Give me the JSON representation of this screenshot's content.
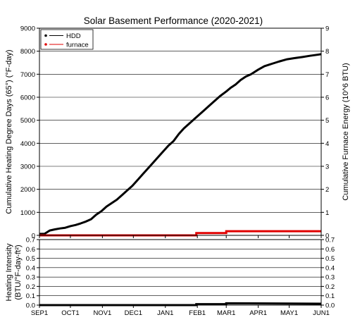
{
  "chart_data": [
    {
      "type": "line",
      "title": "Solar Basement Performance (2020-2021)",
      "ylabel": "Cumulative Heating Degree Days (65°) (°F-day)",
      "ylabel2": "Cumulative Furnace Energy (10^6 BTU)",
      "ylim": [
        0,
        9000
      ],
      "ylim2": [
        0,
        9
      ],
      "yticks": [
        "0",
        "1000",
        "2000",
        "3000",
        "4000",
        "5000",
        "6000",
        "7000",
        "8000",
        "9000"
      ],
      "yticks2": [
        "0",
        "1",
        "2",
        "3",
        "4",
        "5",
        "6",
        "7",
        "8",
        "9"
      ],
      "grid": true,
      "legend_position": "top-left",
      "legend": [
        {
          "name": "HDD",
          "color": "#000000"
        },
        {
          "name": "furnace",
          "color": "#e00000"
        }
      ],
      "x_days": [
        0,
        5,
        10,
        15,
        20,
        25,
        30,
        35,
        40,
        45,
        50,
        55,
        60,
        65,
        70,
        75,
        80,
        85,
        90,
        95,
        100,
        105,
        110,
        115,
        120,
        125,
        130,
        135,
        140,
        145,
        150,
        155,
        160,
        165,
        170,
        175,
        181,
        185,
        190,
        195,
        200,
        205,
        212,
        218,
        225,
        232,
        240,
        247,
        255,
        262,
        270,
        273
      ],
      "series": [
        {
          "name": "HDD",
          "color": "#000000",
          "axis": "left",
          "values": [
            60,
            70,
            210,
            260,
            300,
            330,
            400,
            450,
            520,
            600,
            700,
            900,
            1050,
            1250,
            1400,
            1550,
            1750,
            1950,
            2150,
            2400,
            2650,
            2900,
            3150,
            3400,
            3650,
            3900,
            4100,
            4400,
            4650,
            4850,
            5050,
            5250,
            5450,
            5650,
            5850,
            6050,
            6250,
            6400,
            6550,
            6750,
            6900,
            7000,
            7200,
            7350,
            7450,
            7550,
            7650,
            7700,
            7750,
            7800,
            7850,
            7870
          ]
        },
        {
          "name": "furnace",
          "color": "#e00000",
          "axis": "right",
          "step": true,
          "x": [
            0,
            152,
            152,
            181,
            181,
            273
          ],
          "values": [
            0,
            0,
            0.1,
            0.1,
            0.18,
            0.18
          ]
        }
      ]
    },
    {
      "type": "line",
      "ylabel": "Heating Intensity (BTU/°F-day-ft²)",
      "ylim": [
        0,
        0.7
      ],
      "yticks": [
        "0.0",
        "0.1",
        "0.2",
        "0.3",
        "0.4",
        "0.5",
        "0.6",
        "0.7"
      ],
      "grid": true,
      "categories": [
        "SEP1",
        "OCT1",
        "NOV1",
        "DEC1",
        "JAN1",
        "FEB1",
        "MAR1",
        "APR1",
        "MAY1",
        "JUN1"
      ],
      "category_days": [
        0,
        30,
        61,
        91,
        122,
        153,
        181,
        212,
        242,
        273
      ],
      "series": [
        {
          "name": "intensity",
          "color": "#000000",
          "x": [
            0,
            152,
            152,
            181,
            181,
            273
          ],
          "values": [
            0,
            0,
            0.01,
            0.01,
            0.02,
            0.015
          ]
        }
      ]
    }
  ]
}
